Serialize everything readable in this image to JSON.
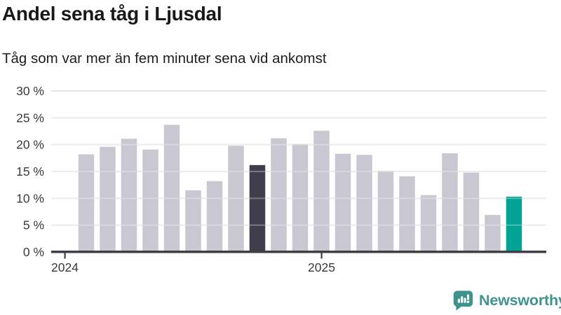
{
  "header": {
    "title": "Andel sena tåg i Ljusdal",
    "subtitle": "Tåg som var mer än fem minuter sena vid ankomst"
  },
  "footer": {
    "brand": "Newsworthy",
    "brand_color": "#3E948C"
  },
  "colors": {
    "bar_default": "#C9C7D1",
    "bar_highlight_dark": "#403D4D",
    "bar_highlight_teal": "#00A394",
    "gridline": "#E4E3E8",
    "axis": "#3F3E46",
    "title_text": "#191919",
    "tick_text": "#3A3A3A"
  },
  "chart_data": {
    "type": "bar",
    "title": "Andel sena tåg i Ljusdal",
    "subtitle": "Tåg som var mer än fem minuter sena vid ankomst",
    "unit": "%",
    "categories": [
      "2024-02",
      "2024-03",
      "2024-04",
      "2024-05",
      "2024-06",
      "2024-07",
      "2024-08",
      "2024-09",
      "2024-10",
      "2024-11",
      "2024-12",
      "2025-01",
      "2025-02",
      "2025-03",
      "2025-04",
      "2025-05",
      "2025-06",
      "2025-07",
      "2025-08",
      "2025-09",
      "2025-10"
    ],
    "values": [
      18.2,
      19.6,
      21.1,
      19.1,
      23.7,
      11.5,
      13.2,
      19.8,
      16.2,
      21.2,
      20.1,
      22.6,
      18.3,
      18.1,
      15.1,
      14.1,
      10.6,
      18.4,
      14.8,
      6.9,
      10.3
    ],
    "highlights": {
      "dark": {
        "index": 8,
        "category": "2024-10"
      },
      "teal": {
        "index": 20,
        "category": "2025-10"
      }
    },
    "ylim": [
      0,
      30
    ],
    "ytick_labels": [
      "0 %",
      "5 %",
      "10 %",
      "15 %",
      "20 %",
      "25 %",
      "30 %"
    ],
    "xtick_labels": [
      "2024",
      "2025"
    ],
    "xtick_month_offsets": [
      -1,
      11
    ],
    "grid": true,
    "legend": false
  }
}
